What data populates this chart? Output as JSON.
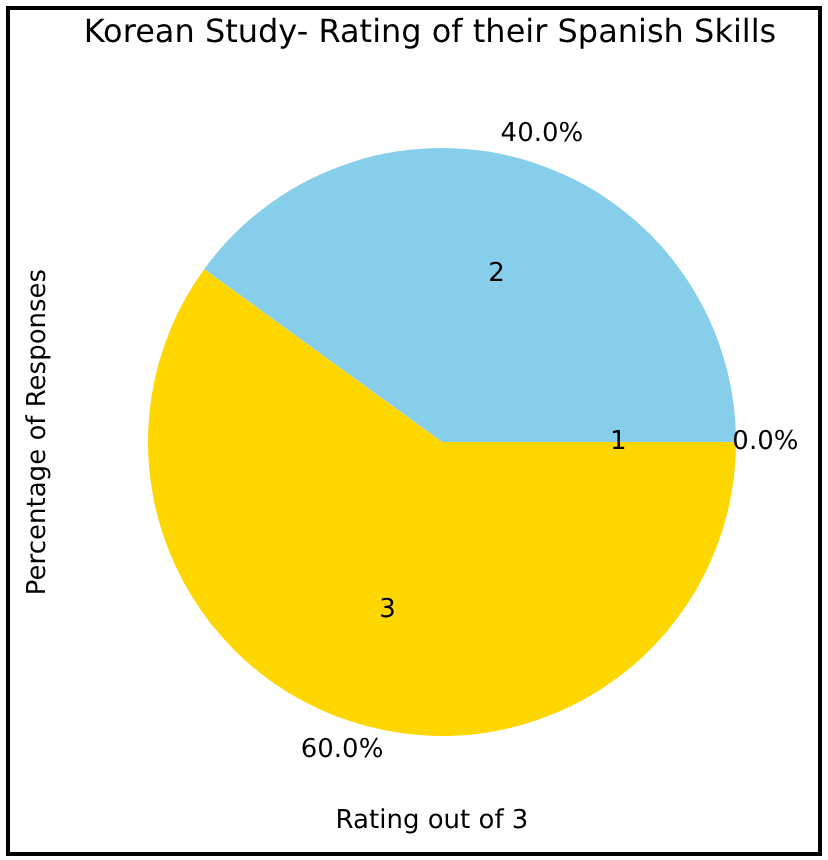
{
  "chart_data": {
    "type": "pie",
    "title": "Korean Study- Rating of their Spanish Skills",
    "xlabel": "Rating out of 3",
    "ylabel": "Percentage of Responses",
    "categories": [
      "1",
      "2",
      "3"
    ],
    "values": [
      0,
      40,
      60
    ],
    "colors": [
      "#ff9999",
      "#87ceeb",
      "#ffd700"
    ],
    "value_labels": [
      "0.0%",
      "40.0%",
      "60.0%"
    ],
    "legend": false
  }
}
